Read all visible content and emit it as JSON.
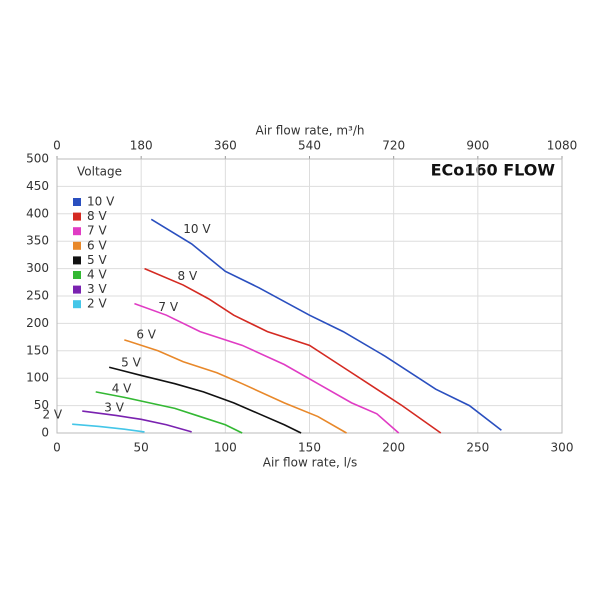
{
  "chart_data": {
    "type": "line",
    "title": "ECo160 FLOW",
    "x_label": "Air flow rate, l/s",
    "x2_label": "Air flow rate, m³/h",
    "legend_title": "Voltage",
    "legend": "upper left",
    "grid": true,
    "xlim": [
      0,
      300
    ],
    "xticks": [
      0,
      50,
      100,
      150,
      200,
      250,
      300
    ],
    "x2lim": [
      0,
      1080
    ],
    "x2ticks": [
      0,
      180,
      360,
      540,
      720,
      900,
      1080
    ],
    "ylim": [
      0,
      500
    ],
    "yticks": [
      0,
      50,
      100,
      150,
      200,
      250,
      300,
      350,
      400,
      450,
      500
    ],
    "series": [
      {
        "name": "10 V",
        "color": "#2a4fbf",
        "x": [
          56,
          80,
          100,
          120,
          150,
          170,
          195,
          225,
          245,
          264
        ],
        "values": [
          390,
          345,
          295,
          265,
          215,
          185,
          140,
          80,
          50,
          5
        ]
      },
      {
        "name": "8 V",
        "color": "#d42a22",
        "x": [
          52,
          75,
          90,
          105,
          125,
          150,
          170,
          190,
          205,
          228
        ],
        "values": [
          300,
          270,
          245,
          215,
          185,
          160,
          120,
          80,
          50,
          0
        ]
      },
      {
        "name": "7 V",
        "color": "#e03cc4",
        "x": [
          46,
          65,
          85,
          110,
          135,
          155,
          175,
          190,
          203
        ],
        "values": [
          236,
          215,
          185,
          160,
          125,
          90,
          55,
          35,
          0
        ]
      },
      {
        "name": "6 V",
        "color": "#e8882a",
        "x": [
          40,
          60,
          75,
          95,
          110,
          135,
          155,
          172
        ],
        "values": [
          170,
          150,
          130,
          110,
          90,
          55,
          30,
          0
        ]
      },
      {
        "name": "5 V",
        "color": "#111111",
        "x": [
          31,
          50,
          70,
          87,
          105,
          120,
          135,
          145
        ],
        "values": [
          120,
          105,
          90,
          75,
          55,
          35,
          15,
          0
        ]
      },
      {
        "name": "4 V",
        "color": "#33b833",
        "x": [
          23,
          40,
          55,
          70,
          85,
          100,
          110
        ],
        "values": [
          75,
          65,
          55,
          45,
          30,
          15,
          0
        ]
      },
      {
        "name": "3 V",
        "color": "#7a22b0",
        "x": [
          15,
          35,
          50,
          65,
          80
        ],
        "values": [
          40,
          32,
          25,
          15,
          2
        ]
      },
      {
        "name": "2 V",
        "color": "#44c6e8",
        "x": [
          9,
          25,
          40,
          52
        ],
        "values": [
          16,
          12,
          7,
          2
        ]
      }
    ]
  }
}
